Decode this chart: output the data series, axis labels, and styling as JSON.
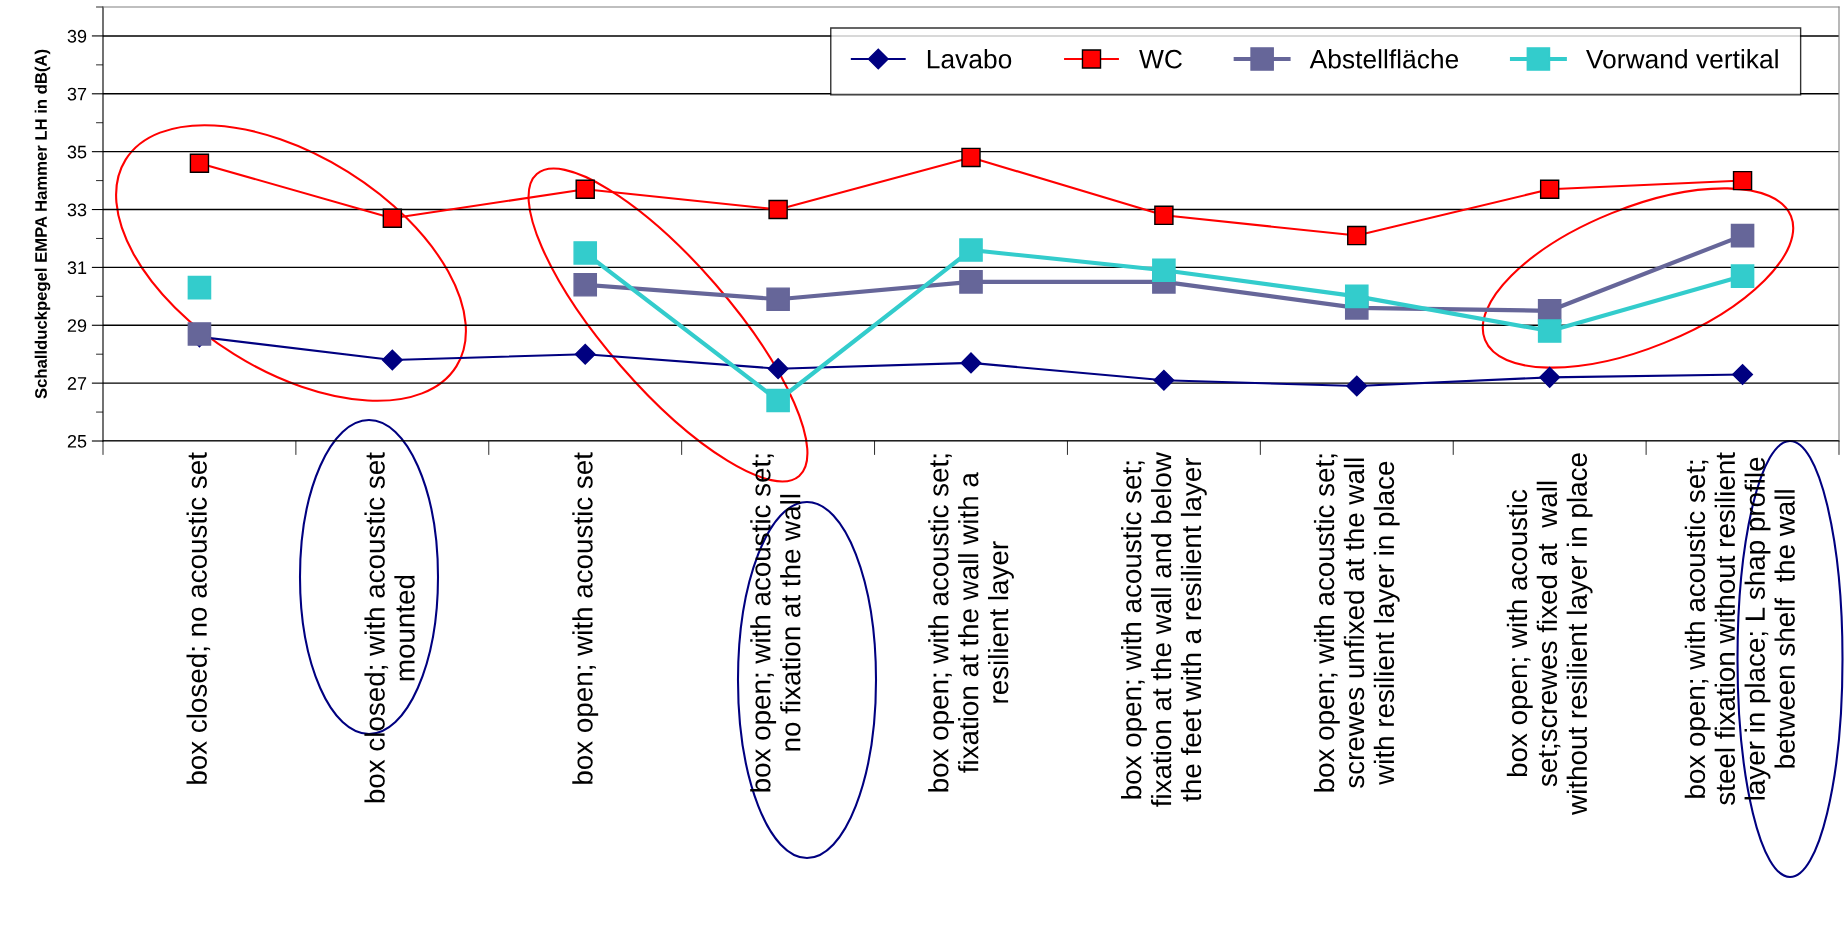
{
  "chart_data": {
    "type": "line",
    "ylabel": "Schallduckpegel EMPA Hammer LH in dB(A)",
    "categories": [
      "box closed; no acoustic set",
      "box closed; with acoustic set\nmounted",
      "box open; with acoustic set",
      "box open; with acoustic set;\nno fixation at the wall",
      "box open; with acoustic set;\nfixation at the wall with a\nresilient layer",
      "box open; with acoustic set;\nfixation at the wall and below\nthe feet with a resilient layer",
      "box open; with acoustic set;\nscrewes unfixed at the wall\nwith resilient layer in place",
      "box open; with acoustic\nset;screwes fixed at  wall\nwithout resilient layer in place",
      "box open; with acoustic set;\nsteel fixation without resilient\nlayer in place; L shap profile\nbetween shelf  the wall"
    ],
    "series": [
      {
        "name": "Lavabo",
        "color": "#000080",
        "marker": "diamond",
        "values": [
          28.6,
          27.8,
          28.0,
          27.5,
          27.7,
          27.1,
          26.9,
          27.2,
          27.3
        ]
      },
      {
        "name": "WC",
        "color": "#ff0000",
        "marker": "square",
        "values": [
          34.6,
          32.7,
          33.7,
          33.0,
          34.8,
          32.8,
          32.1,
          33.7,
          34.0
        ]
      },
      {
        "name": "Abstellfläche",
        "color": "#666699",
        "marker": "square",
        "values": [
          28.7,
          null,
          30.4,
          29.9,
          30.5,
          30.5,
          29.6,
          29.5,
          32.1
        ]
      },
      {
        "name": "Vorwand vertikal",
        "color": "#33cccc",
        "marker": "square",
        "values": [
          30.3,
          null,
          31.5,
          26.4,
          31.6,
          30.9,
          30.0,
          28.8,
          30.7
        ]
      }
    ],
    "ylim": [
      25,
      40
    ],
    "yticks": [
      25,
      {
        "value": 26,
        "label": null
      },
      27,
      {
        "value": 28,
        "label": null
      },
      29,
      {
        "value": 30,
        "label": null
      },
      31,
      {
        "value": 32,
        "label": null
      },
      33,
      {
        "value": 34,
        "label": null
      },
      35,
      {
        "value": 36,
        "label": null
      },
      37,
      {
        "value": 38,
        "label": null
      },
      39,
      {
        "value": 40,
        "label": null
      }
    ],
    "grid": "y",
    "legend": "top right"
  }
}
